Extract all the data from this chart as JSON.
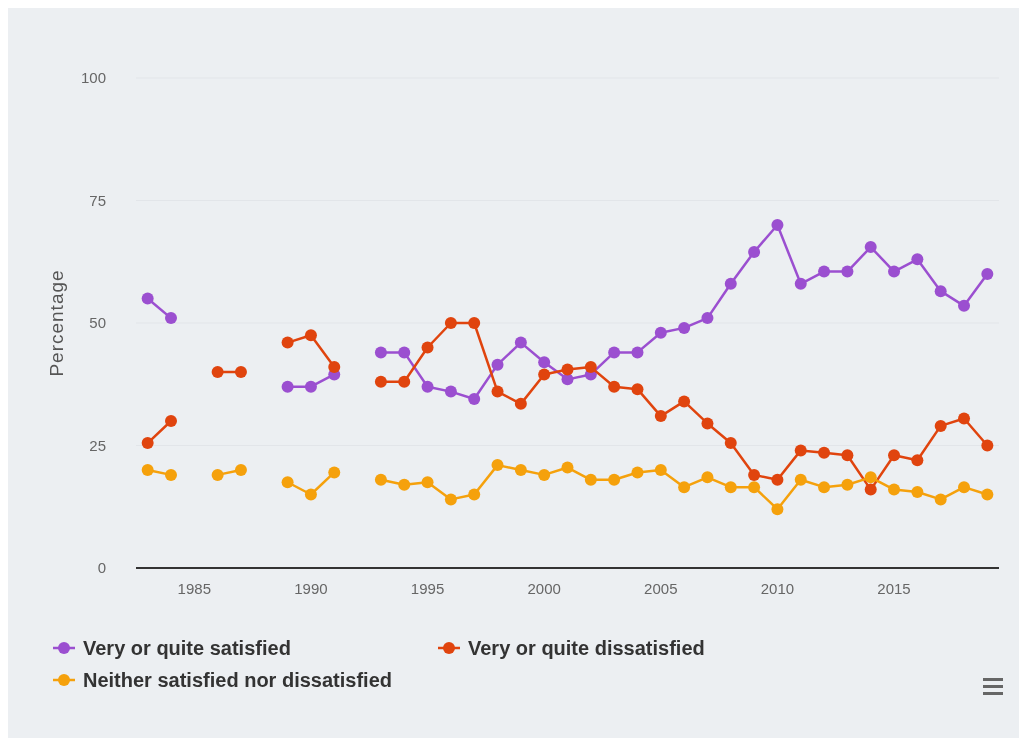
{
  "chart_data": {
    "type": "line",
    "ylabel": "Percentage",
    "x": [
      1983,
      1984,
      1985,
      1986,
      1987,
      1988,
      1989,
      1990,
      1991,
      1992,
      1993,
      1994,
      1995,
      1996,
      1997,
      1998,
      1999,
      2000,
      2001,
      2002,
      2003,
      2004,
      2005,
      2006,
      2007,
      2008,
      2009,
      2010,
      2011,
      2012,
      2013,
      2014,
      2015,
      2016,
      2017,
      2018,
      2019
    ],
    "series": [
      {
        "name": "Very or quite satisfied",
        "color": "#9b4fd0",
        "values": [
          55,
          51,
          null,
          null,
          null,
          null,
          37,
          37,
          39.5,
          null,
          44,
          44,
          37,
          36,
          34.5,
          41.5,
          46,
          42,
          38.5,
          39.5,
          44,
          44,
          48,
          49,
          51,
          58,
          64.5,
          70,
          58,
          60.5,
          60.5,
          65.5,
          60.5,
          63,
          56.5,
          53.5,
          60
        ]
      },
      {
        "name": "Very or quite dissatisfied",
        "color": "#e0440e",
        "values": [
          25.5,
          30,
          null,
          40,
          40,
          null,
          46,
          47.5,
          41,
          null,
          38,
          38,
          45,
          50,
          50,
          36,
          33.5,
          39.5,
          40.5,
          41,
          37,
          36.5,
          31,
          34,
          29.5,
          25.5,
          19,
          18,
          24,
          23.5,
          23,
          16,
          23,
          22,
          29,
          30.5,
          25
        ]
      },
      {
        "name": "Neither satisfied nor dissatisfied",
        "color": "#f5a10c",
        "values": [
          20,
          19,
          null,
          19,
          20,
          null,
          17.5,
          15,
          19.5,
          null,
          18,
          17,
          17.5,
          14,
          15,
          21,
          20,
          19,
          20.5,
          18,
          18,
          19.5,
          20,
          16.5,
          18.5,
          16.5,
          16.5,
          12,
          18,
          16.5,
          17,
          18.5,
          16,
          15.5,
          14,
          16.5,
          15
        ]
      }
    ],
    "xlim": [
      1982.5,
      2019.5
    ],
    "xticks": [
      1985,
      1990,
      1995,
      2000,
      2005,
      2010,
      2015
    ],
    "ylim": [
      0,
      100
    ],
    "yticks": [
      0,
      25,
      50,
      75,
      100
    ],
    "grid": "y",
    "legend": "bottom",
    "marker": "circle",
    "line_style": "solid"
  }
}
